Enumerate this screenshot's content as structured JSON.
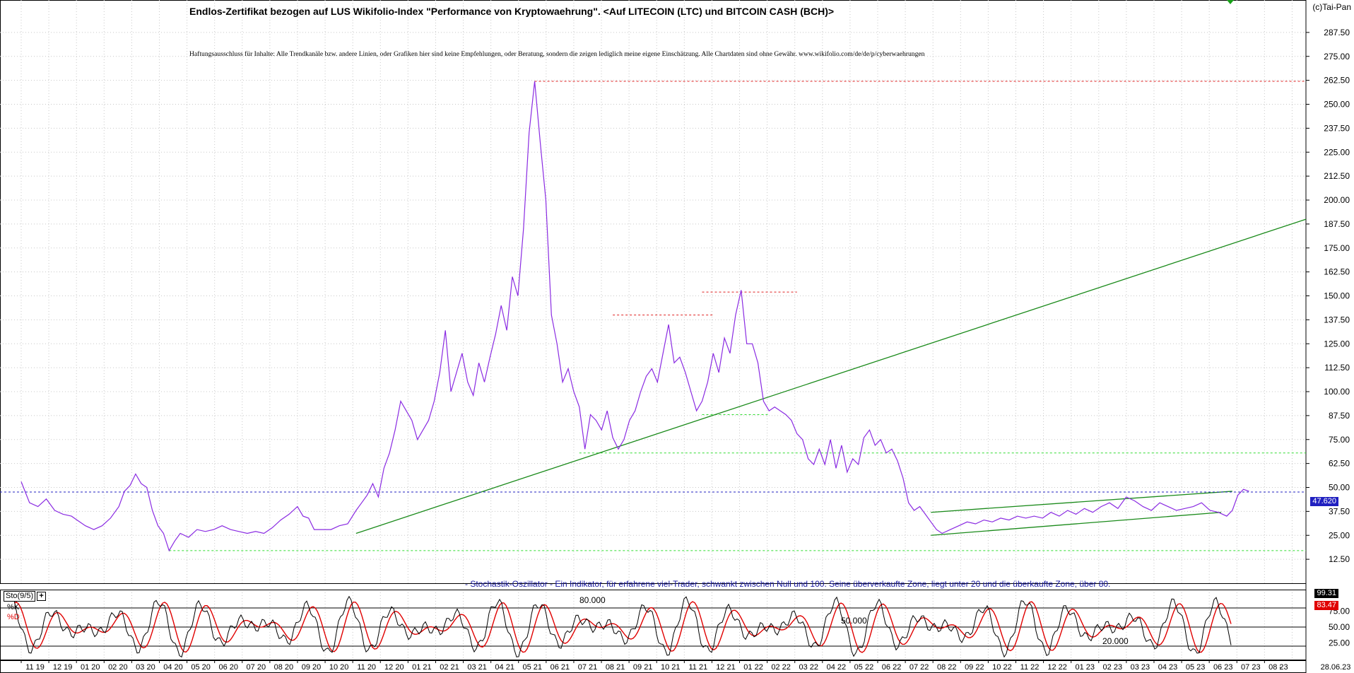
{
  "header": {
    "title": "Endlos-Zertifikat bezogen auf LUS Wikifolio-Index \"Performance von Kryptowaehrung\". <Auf LITECOIN (LTC) und BITCOIN CASH (BCH)>",
    "disclaimer": "Haftungsausschluss für Inhalte: Alle Trendkanäle bzw. andere Linien, oder Grafiken hier sind keine Empfehlungen, oder Beratung, sondern die zeigen lediglich meine eigene Einschätzung. Alle Chartdaten sind ohne Gewähr.  www.wikifolio.com/de/de/p/cyberwaehrungen",
    "copyright": "(c)Tai-Pan"
  },
  "oscillator": {
    "description": "- Stochastik-Oszillator - Ein Indikator, für erfahrene viel-Trader, schwankt zwischen Null und 100. Seine überverkaufte Zone, liegt unter 20 und die überkaufte Zone, über 80.",
    "label": "Sto(9/5)",
    "add_symbol": "+",
    "legend_k": "%K",
    "legend_d": "%D",
    "level_labels": [
      "80.000",
      "50.000",
      "20.000"
    ],
    "k_value": "99.31",
    "d_value": "83.47",
    "tick_labels": [
      "75.00",
      "50.00",
      "25.00"
    ]
  },
  "price_tag": "47.620",
  "colors": {
    "price": "#8a2be2",
    "trend": "#1a8a1a",
    "support": "#33dd33",
    "resistance": "#e02020",
    "current": "#2020c0",
    "k_line": "#000000",
    "d_line": "#e00000"
  },
  "chart_data": {
    "type": "line",
    "y_ticks": [
      "287.50",
      "275.00",
      "262.50",
      "250.00",
      "237.50",
      "225.00",
      "212.50",
      "200.00",
      "187.50",
      "175.00",
      "162.50",
      "150.00",
      "137.50",
      "125.00",
      "112.50",
      "100.00",
      "87.50",
      "75.00",
      "62.50",
      "50.00",
      "37.50",
      "25.00",
      "12.50"
    ],
    "ylim": [
      0,
      300
    ],
    "x_labels": [
      "11 19",
      "12 19",
      "01 20",
      "02 20",
      "03 20",
      "04 20",
      "05 20",
      "06 20",
      "07 20",
      "08 20",
      "09 20",
      "10 20",
      "11 20",
      "12 20",
      "01 21",
      "02 21",
      "03 21",
      "04 21",
      "05 21",
      "06 21",
      "07 21",
      "08 21",
      "09 21",
      "10 21",
      "11 21",
      "12 21",
      "01 22",
      "02 22",
      "03 22",
      "04 22",
      "05 22",
      "06 22",
      "07 22",
      "08 22",
      "09 22",
      "10 22",
      "11 22",
      "12 22",
      "01 23",
      "02 23",
      "03 23",
      "04 23",
      "05 23",
      "06 23",
      "07 23",
      "08 23",
      "-",
      "28.06.23"
    ],
    "series": [
      {
        "values": [
          [
            0,
            53
          ],
          [
            3,
            42
          ],
          [
            6,
            40
          ],
          [
            9,
            44
          ],
          [
            12,
            38
          ],
          [
            15,
            36
          ],
          [
            18,
            35
          ],
          [
            20,
            33
          ],
          [
            23,
            30
          ],
          [
            26,
            28
          ],
          [
            29,
            30
          ],
          [
            32,
            34
          ],
          [
            35,
            40
          ],
          [
            37,
            48
          ],
          [
            39,
            51
          ],
          [
            41,
            57
          ],
          [
            43,
            52
          ],
          [
            45,
            50
          ],
          [
            47,
            38
          ],
          [
            49,
            30
          ],
          [
            51,
            26
          ],
          [
            53,
            17
          ],
          [
            55,
            22
          ],
          [
            57,
            26
          ],
          [
            60,
            24
          ],
          [
            63,
            28
          ],
          [
            66,
            27
          ],
          [
            69,
            28
          ],
          [
            72,
            30
          ],
          [
            75,
            28
          ],
          [
            78,
            27
          ],
          [
            81,
            26
          ],
          [
            84,
            27
          ],
          [
            87,
            26
          ],
          [
            90,
            29
          ],
          [
            93,
            33
          ],
          [
            96,
            36
          ],
          [
            99,
            40
          ],
          [
            101,
            35
          ],
          [
            103,
            34
          ],
          [
            105,
            28
          ],
          [
            108,
            28
          ],
          [
            111,
            28
          ],
          [
            114,
            30
          ],
          [
            117,
            31
          ],
          [
            120,
            38
          ],
          [
            122,
            42
          ],
          [
            124,
            46
          ],
          [
            126,
            52
          ],
          [
            128,
            45
          ],
          [
            130,
            60
          ],
          [
            132,
            68
          ],
          [
            134,
            80
          ],
          [
            136,
            95
          ],
          [
            138,
            90
          ],
          [
            140,
            85
          ],
          [
            142,
            75
          ],
          [
            144,
            80
          ],
          [
            146,
            85
          ],
          [
            148,
            95
          ],
          [
            150,
            110
          ],
          [
            152,
            132
          ],
          [
            154,
            100
          ],
          [
            156,
            110
          ],
          [
            158,
            120
          ],
          [
            160,
            105
          ],
          [
            162,
            98
          ],
          [
            164,
            115
          ],
          [
            166,
            105
          ],
          [
            168,
            118
          ],
          [
            170,
            130
          ],
          [
            172,
            145
          ],
          [
            174,
            132
          ],
          [
            176,
            160
          ],
          [
            178,
            150
          ],
          [
            180,
            185
          ],
          [
            182,
            235
          ],
          [
            184,
            262
          ],
          [
            186,
            230
          ],
          [
            188,
            200
          ],
          [
            190,
            140
          ],
          [
            192,
            125
          ],
          [
            194,
            105
          ],
          [
            196,
            112
          ],
          [
            198,
            100
          ],
          [
            200,
            92
          ],
          [
            202,
            70
          ],
          [
            204,
            88
          ],
          [
            206,
            85
          ],
          [
            208,
            80
          ],
          [
            210,
            90
          ],
          [
            212,
            76
          ],
          [
            214,
            70
          ],
          [
            216,
            75
          ],
          [
            218,
            85
          ],
          [
            220,
            90
          ],
          [
            222,
            100
          ],
          [
            224,
            108
          ],
          [
            226,
            112
          ],
          [
            228,
            105
          ],
          [
            230,
            120
          ],
          [
            232,
            135
          ],
          [
            234,
            115
          ],
          [
            236,
            118
          ],
          [
            238,
            110
          ],
          [
            240,
            100
          ],
          [
            242,
            90
          ],
          [
            244,
            95
          ],
          [
            246,
            105
          ],
          [
            248,
            120
          ],
          [
            250,
            110
          ],
          [
            252,
            128
          ],
          [
            254,
            120
          ],
          [
            256,
            140
          ],
          [
            258,
            153
          ],
          [
            260,
            125
          ],
          [
            262,
            125
          ],
          [
            264,
            115
          ],
          [
            266,
            95
          ],
          [
            268,
            90
          ],
          [
            270,
            92
          ],
          [
            272,
            90
          ],
          [
            274,
            88
          ],
          [
            276,
            85
          ],
          [
            278,
            78
          ],
          [
            280,
            75
          ],
          [
            282,
            65
          ],
          [
            284,
            62
          ],
          [
            286,
            70
          ],
          [
            288,
            62
          ],
          [
            290,
            75
          ],
          [
            292,
            60
          ],
          [
            294,
            72
          ],
          [
            296,
            58
          ],
          [
            298,
            65
          ],
          [
            300,
            62
          ],
          [
            302,
            76
          ],
          [
            304,
            80
          ],
          [
            306,
            72
          ],
          [
            308,
            75
          ],
          [
            310,
            68
          ],
          [
            312,
            70
          ],
          [
            314,
            64
          ],
          [
            316,
            55
          ],
          [
            318,
            42
          ],
          [
            320,
            38
          ],
          [
            322,
            40
          ],
          [
            324,
            36
          ],
          [
            326,
            32
          ],
          [
            328,
            28
          ],
          [
            330,
            26
          ],
          [
            333,
            28
          ],
          [
            336,
            30
          ],
          [
            339,
            32
          ],
          [
            342,
            31
          ],
          [
            345,
            33
          ],
          [
            348,
            32
          ],
          [
            351,
            34
          ],
          [
            354,
            33
          ],
          [
            357,
            35
          ],
          [
            360,
            34
          ],
          [
            363,
            35
          ],
          [
            366,
            34
          ],
          [
            369,
            37
          ],
          [
            372,
            35
          ],
          [
            375,
            38
          ],
          [
            378,
            36
          ],
          [
            381,
            39
          ],
          [
            384,
            37
          ],
          [
            387,
            40
          ],
          [
            390,
            42
          ],
          [
            393,
            39
          ],
          [
            396,
            45
          ],
          [
            399,
            43
          ],
          [
            402,
            40
          ],
          [
            405,
            38
          ],
          [
            408,
            42
          ],
          [
            411,
            40
          ],
          [
            414,
            38
          ],
          [
            417,
            39
          ],
          [
            420,
            40
          ],
          [
            423,
            42
          ],
          [
            426,
            38
          ],
          [
            429,
            37
          ],
          [
            432,
            35
          ],
          [
            434,
            38
          ],
          [
            436,
            46
          ],
          [
            438,
            49
          ],
          [
            440,
            48
          ]
        ]
      }
    ],
    "annotations": {
      "trend_lines": [
        {
          "from": [
            120,
            26
          ],
          "to": [
            470,
            190
          ]
        },
        {
          "from": [
            326,
            37
          ],
          "to": [
            434,
            48
          ]
        },
        {
          "from": [
            326,
            25
          ],
          "to": [
            430,
            37
          ]
        }
      ],
      "resistance_lines": [
        {
          "from": [
            184,
            262
          ],
          "to": [
            470,
            262
          ]
        },
        {
          "from": [
            212,
            140
          ],
          "to": [
            248,
            140
          ]
        },
        {
          "from": [
            244,
            152
          ],
          "to": [
            278,
            152
          ]
        }
      ],
      "support_lines": [
        {
          "from": [
            200,
            68
          ],
          "to": [
            470,
            68
          ]
        },
        {
          "from": [
            244,
            88
          ],
          "to": [
            268,
            88
          ]
        },
        {
          "from": [
            53,
            17
          ],
          "to": [
            470,
            17
          ]
        }
      ],
      "current_line": 47.62
    }
  }
}
